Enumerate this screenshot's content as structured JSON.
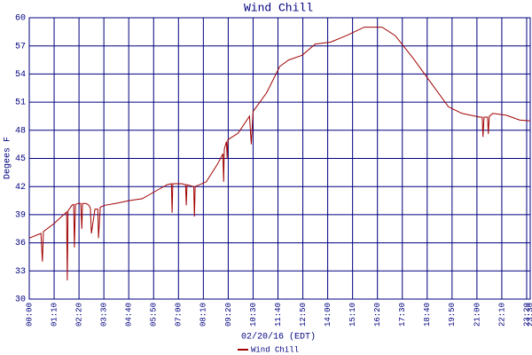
{
  "chart_data": {
    "type": "line",
    "title": "Wind Chill",
    "y_label": "Degees F",
    "x_label": "02/20/16 (EDT)",
    "x": [
      0,
      33,
      37,
      40,
      68,
      100,
      105,
      107,
      109,
      120,
      125,
      127,
      130,
      138,
      145,
      148,
      150,
      160,
      168,
      172,
      175,
      185,
      190,
      193,
      195,
      200,
      213,
      243,
      280,
      318,
      355,
      388,
      400,
      402,
      404,
      430,
      440,
      442,
      444,
      463,
      465,
      467,
      498,
      530,
      545,
      547,
      549,
      555,
      557,
      559,
      588,
      620,
      625,
      630,
      668,
      705,
      730,
      768,
      805,
      848,
      893,
      943,
      993,
      1030,
      1080,
      1130,
      1180,
      1218,
      1268,
      1275,
      1277,
      1280,
      1290,
      1292,
      1295,
      1305,
      1343,
      1380,
      1410
    ],
    "series": [
      {
        "name": "Wind Chill",
        "color": "#a00000",
        "values": [
          36.5,
          37,
          34,
          37.2,
          38,
          39.1,
          39.3,
          32,
          39.4,
          40,
          40.1,
          35.5,
          40.1,
          40.2,
          40.2,
          37.5,
          40.2,
          40.2,
          40,
          39.7,
          37,
          39.6,
          39.6,
          39.6,
          36.5,
          39.8,
          40,
          40.2,
          40.5,
          40.7,
          41.5,
          42.2,
          42.3,
          39.2,
          42.3,
          42.3,
          42.2,
          40,
          42.2,
          42,
          38.8,
          42,
          42.5,
          44.4,
          45.5,
          42.5,
          46,
          46.8,
          45,
          47,
          47.7,
          49.5,
          46.5,
          50,
          52,
          54.8,
          55.5,
          56,
          57.2,
          57.4,
          58.1,
          59,
          59,
          58.1,
          55.7,
          53.1,
          50.5,
          49.8,
          49.4,
          49.4,
          47.3,
          49.4,
          49.4,
          47.6,
          49.5,
          49.8,
          49.6,
          49.1,
          49
        ]
      }
    ],
    "xlim": [
      0,
      1410
    ],
    "xticks": [
      {
        "value": 0,
        "label": "00:00"
      },
      {
        "value": 70,
        "label": "01:10"
      },
      {
        "value": 140,
        "label": "02:20"
      },
      {
        "value": 210,
        "label": "03:30"
      },
      {
        "value": 280,
        "label": "04:40"
      },
      {
        "value": 350,
        "label": "05:50"
      },
      {
        "value": 420,
        "label": "07:00"
      },
      {
        "value": 490,
        "label": "08:10"
      },
      {
        "value": 560,
        "label": "09:20"
      },
      {
        "value": 630,
        "label": "10:30"
      },
      {
        "value": 700,
        "label": "11:40"
      },
      {
        "value": 770,
        "label": "12:50"
      },
      {
        "value": 840,
        "label": "14:00"
      },
      {
        "value": 910,
        "label": "15:10"
      },
      {
        "value": 980,
        "label": "16:20"
      },
      {
        "value": 1050,
        "label": "17:30"
      },
      {
        "value": 1120,
        "label": "18:40"
      },
      {
        "value": 1190,
        "label": "19:50"
      },
      {
        "value": 1260,
        "label": "21:00"
      },
      {
        "value": 1330,
        "label": "22:10"
      },
      {
        "value": 1400,
        "label": "23:20"
      },
      {
        "value": 1410,
        "label": "23:30"
      }
    ],
    "ylim": [
      30,
      60
    ],
    "yticks": [
      30,
      33,
      36,
      39,
      42,
      45,
      48,
      51,
      54,
      57,
      60
    ],
    "grid": true,
    "grid_color": "#000080"
  }
}
